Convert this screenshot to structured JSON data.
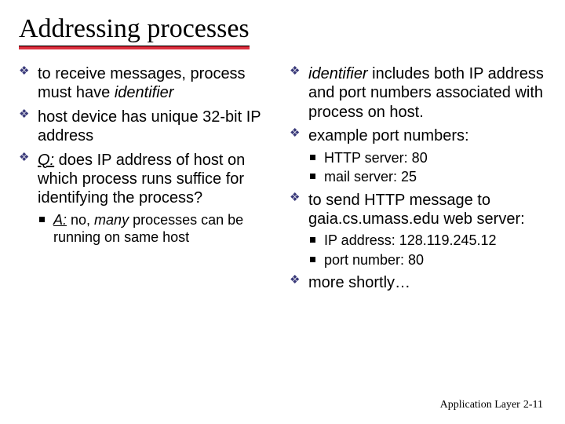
{
  "title": "Addressing processes",
  "colors": {
    "title_underline_black": "#000000",
    "title_underline_red": "#d91a2a",
    "diamond_bullet": "#3a3a7a",
    "square_bullet": "#000000",
    "background": "#ffffff",
    "text": "#000000"
  },
  "typography": {
    "title_font": "Times New Roman",
    "title_size_pt": 26,
    "body_font": "Arial",
    "body_size_pt": 15,
    "sub_size_pt": 13,
    "footer_font": "Times New Roman",
    "footer_size_pt": 10
  },
  "left": {
    "b1_pre": "to receive messages, process  must have ",
    "b1_ital": "identifier",
    "b2": "host device has unique 32-bit IP address",
    "b3_q": "Q:",
    "b3_rest": " does  IP address of host on which process runs suffice for identifying the process?",
    "b3_sub_a": "A:",
    "b3_sub_mid": " no, ",
    "b3_sub_ital": "many",
    "b3_sub_end": " processes can be running on same host"
  },
  "right": {
    "b1_ital": "identifier",
    "b1_rest": " includes both IP address and port numbers associated with process on host.",
    "b2": "example port numbers:",
    "b2_sub1": "HTTP server: 80",
    "b2_sub2": "mail server: 25",
    "b3": "to send HTTP message to gaia.cs.umass.edu web server:",
    "b3_sub1": "IP address: 128.119.245.12",
    "b3_sub2": "port number: 80",
    "b4": "more shortly…"
  },
  "footer": {
    "label": "Application Layer",
    "page": "2-11"
  }
}
